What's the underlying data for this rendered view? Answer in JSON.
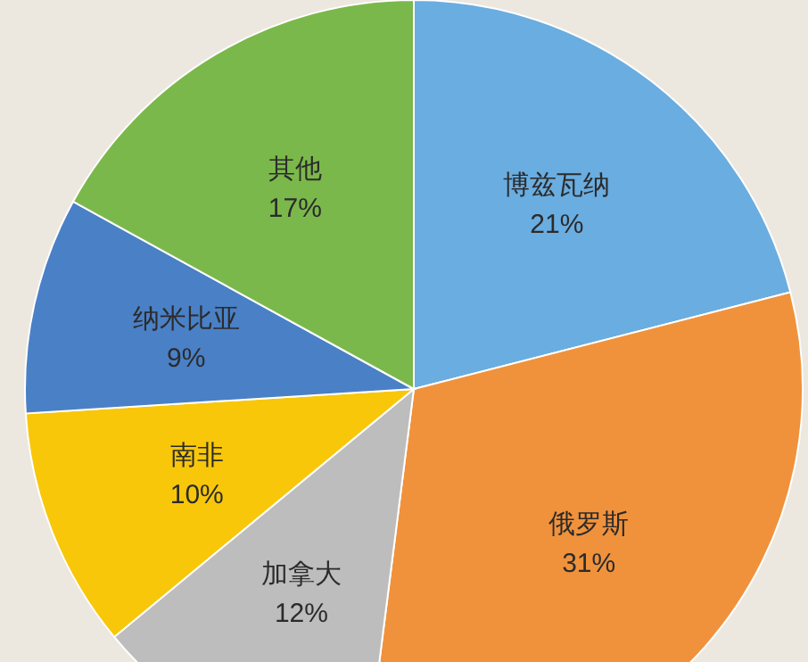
{
  "chart_data": {
    "type": "pie",
    "categories": [
      "博兹瓦纳",
      "俄罗斯",
      "加拿大",
      "南非",
      "纳米比亚",
      "其他"
    ],
    "values": [
      21,
      31,
      12,
      10,
      9,
      17
    ],
    "value_labels": [
      "21%",
      "31%",
      "12%",
      "10%",
      "9%",
      "17%"
    ],
    "colors": [
      "#6aade0",
      "#f0923c",
      "#bdbdbd",
      "#f8c70a",
      "#4a80c6",
      "#7bb84b"
    ]
  }
}
